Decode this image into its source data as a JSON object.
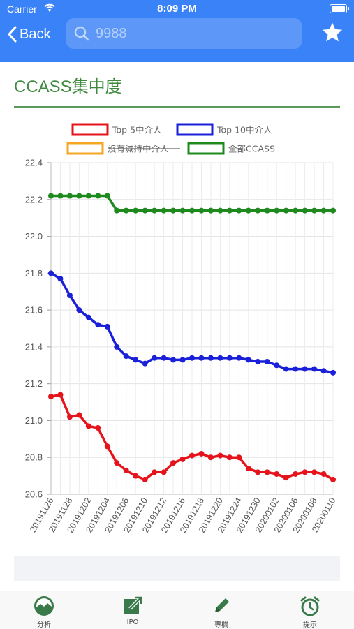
{
  "status_bar": {
    "carrier": "Carrier",
    "time": "8:09 PM"
  },
  "nav": {
    "back_label": "Back",
    "search_placeholder": "9988",
    "favorite_icon": "star-icon"
  },
  "page_title": "CCASS集中度",
  "colors": {
    "nav_bg": "#3a82f7",
    "title_green": "#3f8a3f",
    "top5": "#e5131b",
    "top10": "#1a20d8",
    "no_reduce": "#f5a623",
    "all_ccass": "#1e8a1e"
  },
  "chart_data": {
    "type": "line",
    "legend": [
      {
        "name": "Top 5中介人",
        "color": "#e5131b",
        "hidden": false
      },
      {
        "name": "Top 10中介人",
        "color": "#1a20d8",
        "hidden": false
      },
      {
        "name": "沒有減持中介人",
        "color": "#f5a623",
        "hidden": true
      },
      {
        "name": "全部CCASS",
        "color": "#1e8a1e",
        "hidden": false
      }
    ],
    "legend_position": "top",
    "grid": true,
    "ylim": [
      20.6,
      22.4
    ],
    "yticks": [
      "22.4",
      "22.2",
      "22.0",
      "21.8",
      "21.6",
      "21.4",
      "21.2",
      "21.0",
      "20.8",
      "20.6"
    ],
    "x_labels": [
      "20191126",
      "20191128",
      "20191202",
      "20191204",
      "20191206",
      "20191210",
      "20191212",
      "20191216",
      "20191218",
      "20191220",
      "20191224",
      "20191230",
      "20200102",
      "20200106",
      "20200108",
      "20200110"
    ],
    "series": [
      {
        "name": "Top 5中介人",
        "color": "#e5131b",
        "values": [
          21.13,
          21.14,
          21.02,
          21.03,
          20.97,
          20.96,
          20.86,
          20.77,
          20.73,
          20.7,
          20.68,
          20.72,
          20.72,
          20.77,
          20.79,
          20.81,
          20.82,
          20.8,
          20.81,
          20.8,
          20.8,
          20.74,
          20.72,
          20.72,
          20.71,
          20.69,
          20.71,
          20.72,
          20.72,
          20.71,
          20.68
        ]
      },
      {
        "name": "Top 10中介人",
        "color": "#1a20d8",
        "values": [
          21.8,
          21.77,
          21.68,
          21.6,
          21.56,
          21.52,
          21.51,
          21.4,
          21.35,
          21.33,
          21.31,
          21.34,
          21.34,
          21.33,
          21.33,
          21.34,
          21.34,
          21.34,
          21.34,
          21.34,
          21.34,
          21.33,
          21.32,
          21.32,
          21.3,
          21.28,
          21.28,
          21.28,
          21.28,
          21.27,
          21.26
        ]
      },
      {
        "name": "全部CCASS",
        "color": "#1e8a1e",
        "values": [
          22.22,
          22.22,
          22.22,
          22.22,
          22.22,
          22.22,
          22.22,
          22.14,
          22.14,
          22.14,
          22.14,
          22.14,
          22.14,
          22.14,
          22.14,
          22.14,
          22.14,
          22.14,
          22.14,
          22.14,
          22.14,
          22.14,
          22.14,
          22.14,
          22.14,
          22.14,
          22.14,
          22.14,
          22.14,
          22.14,
          22.14
        ]
      }
    ]
  },
  "tabbar": {
    "items": [
      {
        "label": "分析",
        "icon": "analysis-icon"
      },
      {
        "label": "IPO",
        "icon": "ipo-icon"
      },
      {
        "label": "專欄",
        "icon": "pencil-icon"
      },
      {
        "label": "提示",
        "icon": "alarm-clock-icon"
      }
    ]
  }
}
